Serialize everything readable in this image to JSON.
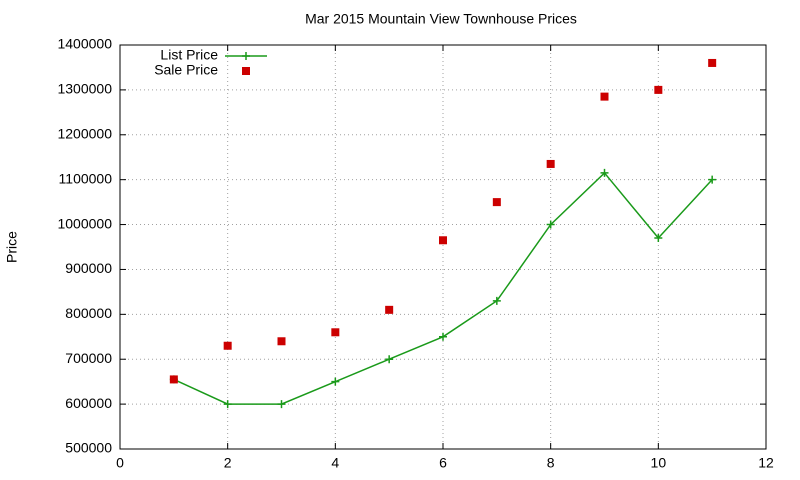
{
  "chart_data": {
    "type": "line",
    "title": "Mar 2015 Mountain View Townhouse Prices",
    "y_label": "Price",
    "x": [
      1,
      2,
      3,
      4,
      5,
      6,
      7,
      8,
      9,
      10,
      11
    ],
    "series": [
      {
        "name": "List Price",
        "color": "#1a9a1a",
        "style": "linespoints",
        "values": [
          655000,
          600000,
          600000,
          650000,
          700000,
          750000,
          830000,
          1000000,
          1115000,
          970000,
          1100000
        ]
      },
      {
        "name": "Sale Price",
        "color": "#cc0000",
        "style": "points",
        "values": [
          655000,
          730000,
          740000,
          760000,
          810000,
          965000,
          1050000,
          1135000,
          1285000,
          1300000,
          1360000
        ]
      }
    ],
    "xlim": [
      0,
      12
    ],
    "xticks": [
      0,
      2,
      4,
      6,
      8,
      10,
      12
    ],
    "ylim": [
      500000,
      1400000
    ],
    "yticks": [
      500000,
      600000,
      700000,
      800000,
      900000,
      1000000,
      1100000,
      1200000,
      1300000,
      1400000
    ],
    "grid": true,
    "legend": "top-left"
  }
}
